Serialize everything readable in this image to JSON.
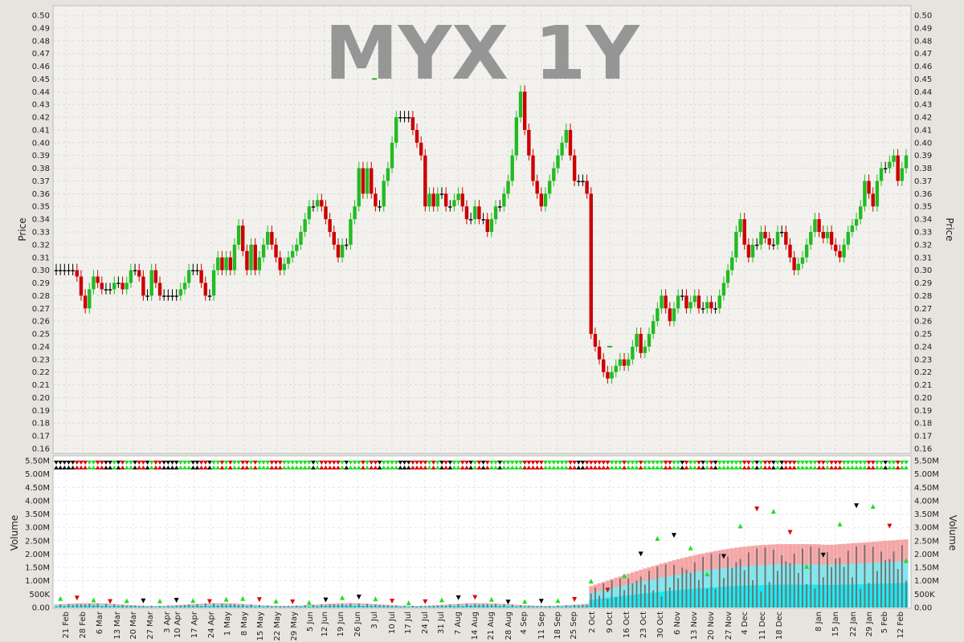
{
  "chart_data": [
    {
      "type": "candlestick",
      "title": "MYX 1Y",
      "ylabel": "Price",
      "ylim": [
        0.16,
        0.5
      ],
      "y_ticks": [
        "0.16",
        "0.17",
        "0.18",
        "0.19",
        "0.20",
        "0.21",
        "0.22",
        "0.23",
        "0.24",
        "0.25",
        "0.26",
        "0.27",
        "0.28",
        "0.29",
        "0.30",
        "0.31",
        "0.32",
        "0.33",
        "0.34",
        "0.35",
        "0.36",
        "0.37",
        "0.38",
        "0.39",
        "0.40",
        "0.41",
        "0.42",
        "0.43",
        "0.44",
        "0.45",
        "0.46",
        "0.47",
        "0.48",
        "0.49",
        "0.50"
      ],
      "grid": true,
      "colors": {
        "up": "#22bb22",
        "down": "#cc0000",
        "flat": "#000000",
        "bg": "#f2f1ed",
        "grid": "#cfcfcf"
      },
      "x_ticks": [
        "21 Feb",
        "28 Feb",
        "6 Mar",
        "13 Mar",
        "20 Mar",
        "27 Mar",
        "3 Apr",
        "10 Apr",
        "17 Apr",
        "24 Apr",
        "1 May",
        "8 May",
        "15 May",
        "22 May",
        "29 May",
        "5 Jun",
        "12 Jun",
        "19 Jun",
        "26 Jun",
        "3 Jul",
        "10 Jul",
        "17 Jul",
        "24 Jul",
        "31 Jul",
        "7 Aug",
        "14 Aug",
        "21 Aug",
        "28 Aug",
        "4 Sep",
        "11 Sep",
        "18 Sep",
        "25 Sep",
        "2 Oct",
        "9 Oct",
        "16 Oct",
        "23 Oct",
        "30 Oct",
        "6 Nov",
        "13 Nov",
        "20 Nov",
        "27 Nov",
        "4 Dec",
        "11 Dec",
        "18 Dec",
        "8 Jan",
        "15 Jan",
        "22 Jan",
        "29 Jan",
        "5 Feb",
        "12 Feb"
      ],
      "closes": [
        0.3,
        0.3,
        0.3,
        0.3,
        0.3,
        0.295,
        0.28,
        0.27,
        0.285,
        0.295,
        0.29,
        0.285,
        0.285,
        0.285,
        0.29,
        0.29,
        0.285,
        0.29,
        0.3,
        0.3,
        0.295,
        0.28,
        0.28,
        0.3,
        0.29,
        0.28,
        0.28,
        0.28,
        0.28,
        0.28,
        0.285,
        0.29,
        0.3,
        0.3,
        0.3,
        0.29,
        0.28,
        0.28,
        0.3,
        0.31,
        0.3,
        0.31,
        0.3,
        0.32,
        0.335,
        0.315,
        0.3,
        0.32,
        0.3,
        0.31,
        0.32,
        0.33,
        0.32,
        0.31,
        0.3,
        0.305,
        0.31,
        0.315,
        0.32,
        0.33,
        0.34,
        0.35,
        0.35,
        0.355,
        0.35,
        0.34,
        0.33,
        0.32,
        0.31,
        0.32,
        0.32,
        0.34,
        0.35,
        0.38,
        0.36,
        0.38,
        0.36,
        0.35,
        0.35,
        0.37,
        0.38,
        0.4,
        0.42,
        0.42,
        0.42,
        0.42,
        0.41,
        0.4,
        0.39,
        0.35,
        0.36,
        0.35,
        0.36,
        0.36,
        0.35,
        0.35,
        0.355,
        0.36,
        0.35,
        0.34,
        0.34,
        0.35,
        0.34,
        0.34,
        0.33,
        0.34,
        0.35,
        0.35,
        0.36,
        0.37,
        0.39,
        0.42,
        0.44,
        0.41,
        0.39,
        0.37,
        0.36,
        0.35,
        0.36,
        0.37,
        0.38,
        0.39,
        0.4,
        0.41,
        0.39,
        0.37,
        0.37,
        0.37,
        0.36,
        0.25,
        0.24,
        0.23,
        0.22,
        0.215,
        0.22,
        0.225,
        0.23,
        0.225,
        0.23,
        0.24,
        0.25,
        0.235,
        0.24,
        0.25,
        0.26,
        0.27,
        0.28,
        0.27,
        0.26,
        0.27,
        0.28,
        0.28,
        0.27,
        0.275,
        0.28,
        0.27,
        0.27,
        0.275,
        0.27,
        0.27,
        0.28,
        0.29,
        0.3,
        0.31,
        0.33,
        0.34,
        0.32,
        0.31,
        0.32,
        0.32,
        0.33,
        0.325,
        0.32,
        0.32,
        0.33,
        0.33,
        0.32,
        0.31,
        0.3,
        0.305,
        0.31,
        0.32,
        0.33,
        0.34,
        0.33,
        0.325,
        0.33,
        0.32,
        0.315,
        0.31,
        0.32,
        0.33,
        0.335,
        0.34,
        0.35,
        0.37,
        0.36,
        0.35,
        0.37,
        0.38,
        0.38,
        0.385,
        0.39,
        0.37,
        0.38,
        0.39
      ],
      "special_marks": [
        {
          "x": "3 Jul",
          "value": 0.45
        },
        {
          "x": "9 Oct",
          "value": 0.24
        }
      ]
    },
    {
      "type": "bar",
      "ylabel": "Volume",
      "ylim": [
        0,
        5500000
      ],
      "y_ticks": [
        "0.00",
        "500K",
        "1.00M",
        "1.50M",
        "2.00M",
        "2.50M",
        "3.00M",
        "3.50M",
        "4.00M",
        "4.50M",
        "5.00M",
        "5.50M"
      ],
      "x_ticks": [
        "21 Feb",
        "28 Feb",
        "6 Mar",
        "13 Mar",
        "20 Mar",
        "27 Mar",
        "3 Apr",
        "10 Apr",
        "17 Apr",
        "24 Apr",
        "1 May",
        "8 May",
        "15 May",
        "22 May",
        "29 May",
        "5 Jun",
        "12 Jun",
        "19 Jun",
        "26 Jun",
        "3 Jul",
        "10 Jul",
        "17 Jul",
        "24 Jul",
        "31 Jul",
        "7 Aug",
        "14 Aug",
        "21 Aug",
        "28 Aug",
        "4 Sep",
        "11 Sep",
        "18 Sep",
        "25 Sep",
        "2 Oct",
        "9 Oct",
        "16 Oct",
        "23 Oct",
        "30 Oct",
        "6 Nov",
        "13 Nov",
        "20 Nov",
        "27 Nov",
        "4 Dec",
        "11 Dec",
        "18 Dec",
        "8 Jan",
        "15 Jan",
        "22 Jan",
        "29 Jan",
        "5 Feb",
        "12 Feb"
      ],
      "colors": {
        "bar": "#707070",
        "band_outer": "#f4a6a6",
        "band_mid": "#7fe8ef",
        "band_inner": "#11eaf2",
        "up": "#22dd22",
        "down": "#dd0000",
        "flat": "#000000"
      }
    }
  ]
}
